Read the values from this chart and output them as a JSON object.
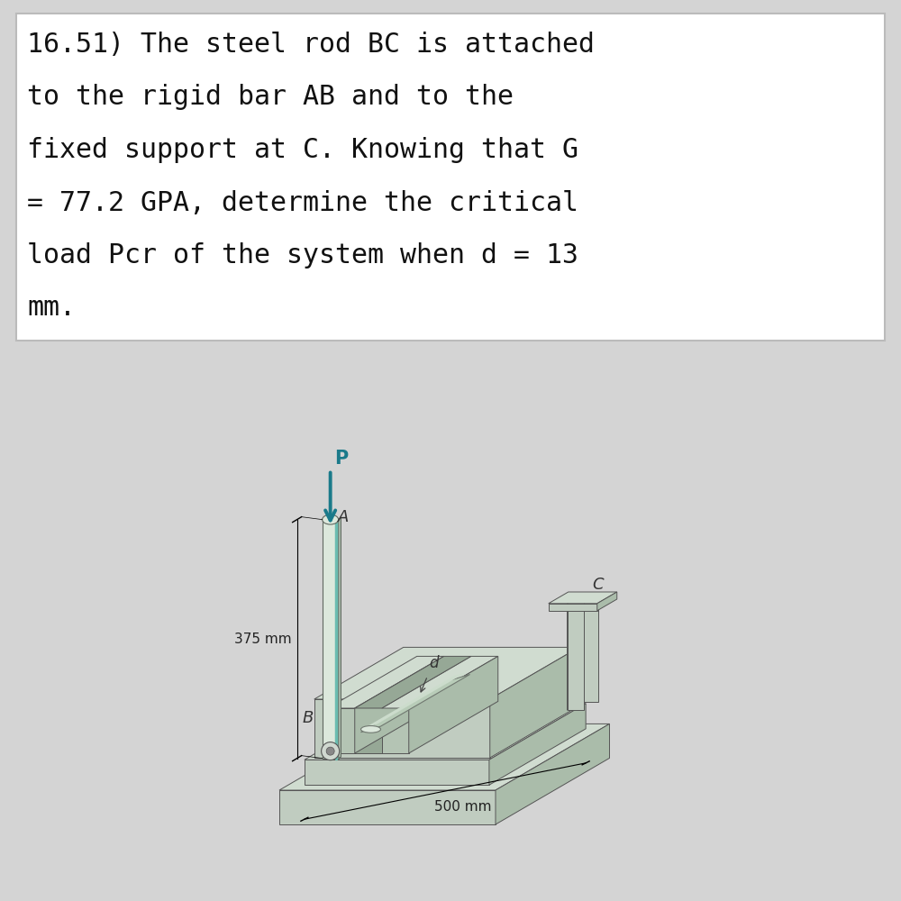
{
  "text_lines": [
    "16.51) The steel rod BC is attached",
    "to the rigid bar AB and to the",
    "fixed support at C. Knowing that G",
    "= 77.2 GPA, determine the critical",
    "load Pcr of the system when d = 13",
    "mm."
  ],
  "text_box_bg": "#ffffff",
  "text_box_border": "#bbbbbb",
  "diagram_bg": "#d4d4d4",
  "text_color": "#111111",
  "font_size": 21.5,
  "text_font": "monospace",
  "arrow_color": "#1a7a8a",
  "dim_label_375": "375 mm",
  "dim_label_500": "500 mm",
  "label_A": "A",
  "label_B": "B",
  "label_C": "C",
  "label_P": "P",
  "label_d": "d",
  "c_top": "#d0dcd0",
  "c_front": "#c0ccc0",
  "c_side": "#aabcaa",
  "c_dark": "#96a896",
  "c_med": "#b4c4b4",
  "c_light": "#dce8dc",
  "c_rod": "#b8ccb8",
  "c_rod_hi": "#ccdccc",
  "c_bar_hi": "#a8d4c0"
}
